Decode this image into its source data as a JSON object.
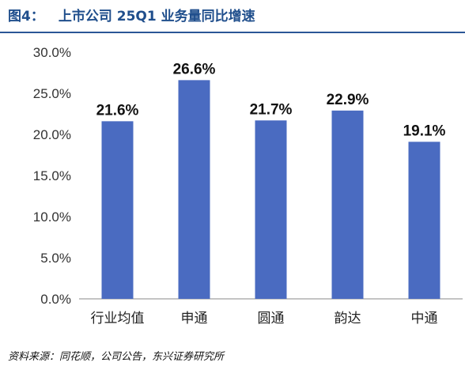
{
  "figure": {
    "number_label": "图4：",
    "title": "上市公司 25Q1 业务量同比增速",
    "source": "资料来源：同花顺，公司公告，东兴证券研究所"
  },
  "colors": {
    "bar": "#4a6bc1",
    "title": "#1f4e8c",
    "axis": "#888888"
  },
  "chart_data": {
    "type": "bar",
    "title": "上市公司 25Q1 业务量同比增速",
    "xlabel": "",
    "ylabel": "",
    "categories": [
      "行业均值",
      "申通",
      "圆通",
      "韵达",
      "中通"
    ],
    "values": [
      21.6,
      26.6,
      21.7,
      22.9,
      19.1
    ],
    "data_labels": [
      "21.6%",
      "26.6%",
      "21.7%",
      "22.9%",
      "19.1%"
    ],
    "ylim": [
      0,
      30
    ],
    "yticks": [
      0,
      5,
      10,
      15,
      20,
      25,
      30
    ],
    "ytick_labels": [
      "0.0%",
      "5.0%",
      "10.0%",
      "15.0%",
      "20.0%",
      "25.0%",
      "30.0%"
    ],
    "grid": false,
    "legend": "none"
  }
}
